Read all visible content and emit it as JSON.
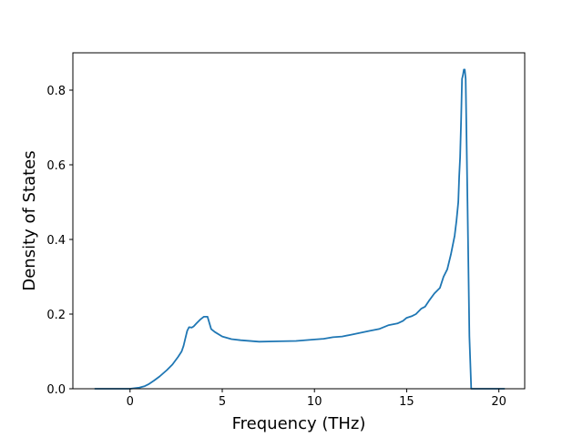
{
  "chart_data": {
    "type": "line",
    "title": "",
    "xlabel": "Frequency (THz)",
    "ylabel": "Density of States",
    "xlim": [
      -3.1,
      21.4
    ],
    "ylim": [
      0.0,
      0.9
    ],
    "xticks": [
      0,
      5,
      10,
      15,
      20
    ],
    "xtick_labels": [
      "0",
      "5",
      "10",
      "15",
      "20"
    ],
    "yticks": [
      0.0,
      0.2,
      0.4,
      0.6,
      0.8
    ],
    "ytick_labels": [
      "0.0",
      "0.2",
      "0.4",
      "0.6",
      "0.8"
    ],
    "grid": false,
    "legend": "none",
    "line_color": "#1f77b4",
    "series": [
      {
        "x": [
          -1.9,
          -1.0,
          0.0,
          0.5,
          0.8,
          1.0,
          1.3,
          1.6,
          2.0,
          2.3,
          2.6,
          2.8,
          2.9,
          3.0,
          3.1,
          3.2,
          3.35,
          3.45,
          3.6,
          3.8,
          4.0,
          4.2,
          4.4,
          4.6,
          5.0,
          5.5,
          6.0,
          7.0,
          8.0,
          9.0,
          10.0,
          10.5,
          11.0,
          11.5,
          12.0,
          12.5,
          13.0,
          13.5,
          14.0,
          14.5,
          14.8,
          15.0,
          15.3,
          15.5,
          15.8,
          16.0,
          16.2,
          16.5,
          16.8,
          17.0,
          17.2,
          17.4,
          17.6,
          17.7,
          17.8,
          17.85,
          17.9,
          17.95,
          18.0,
          18.05,
          18.1,
          18.15,
          18.2,
          18.3,
          18.4,
          18.5,
          18.6,
          19.0,
          20.0,
          20.3
        ],
        "y": [
          0.0,
          0.0,
          0.0,
          0.003,
          0.007,
          0.012,
          0.022,
          0.033,
          0.05,
          0.065,
          0.085,
          0.1,
          0.115,
          0.135,
          0.155,
          0.165,
          0.164,
          0.167,
          0.175,
          0.185,
          0.193,
          0.193,
          0.16,
          0.152,
          0.14,
          0.133,
          0.13,
          0.126,
          0.127,
          0.128,
          0.132,
          0.134,
          0.138,
          0.14,
          0.145,
          0.15,
          0.155,
          0.16,
          0.17,
          0.175,
          0.182,
          0.19,
          0.195,
          0.2,
          0.215,
          0.22,
          0.235,
          0.255,
          0.27,
          0.3,
          0.32,
          0.36,
          0.41,
          0.45,
          0.5,
          0.57,
          0.62,
          0.72,
          0.83,
          0.84,
          0.855,
          0.855,
          0.83,
          0.5,
          0.14,
          0.0,
          0.0,
          0.0,
          0.0,
          0.0
        ]
      }
    ]
  }
}
